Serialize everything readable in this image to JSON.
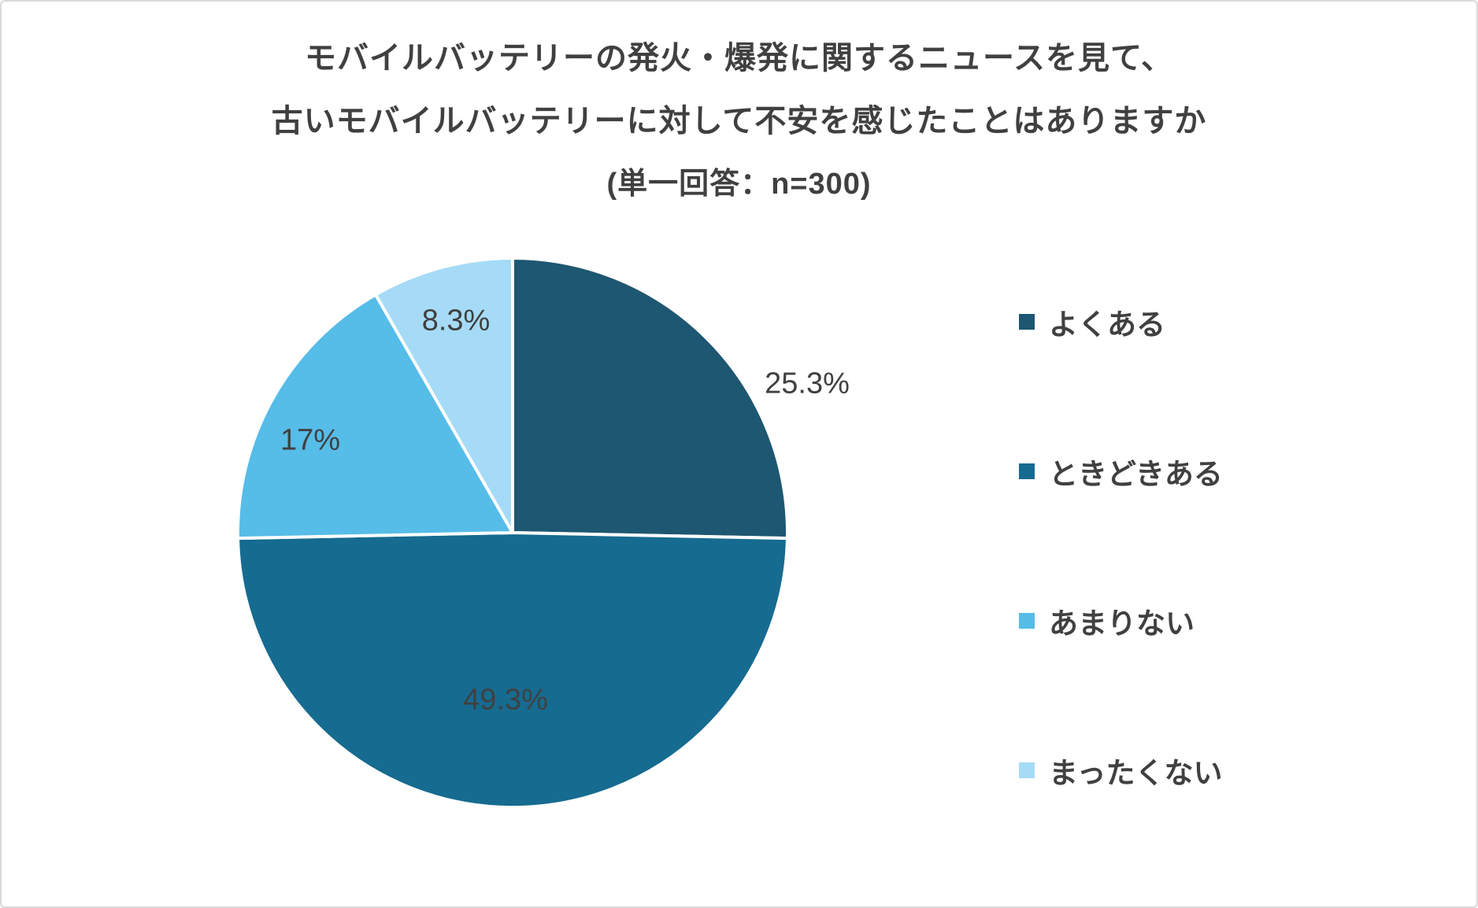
{
  "title": {
    "line1": "モバイルバッテリーの発火・爆発に関するニュースを見て、",
    "line2": "古いモバイルバッテリーに対して不安を感じたことはありますか",
    "line3": "(単一回答：n=300)"
  },
  "chart_data": {
    "type": "pie",
    "title": "モバイルバッテリーの発火・爆発に関するニュースを見て、古いモバイルバッテリーに対して不安を感じたことはありますか",
    "subtitle": "(単一回答：n=300)",
    "sample_size": 300,
    "direction": "clockwise",
    "start_angle_deg": 0,
    "legend_position": "right",
    "slices": [
      {
        "label": "よくある",
        "value": 25.3,
        "display": "25.3%",
        "color": "#1E5771"
      },
      {
        "label": "ときどきある",
        "value": 49.3,
        "display": "49.3%",
        "color": "#166B90"
      },
      {
        "label": "あまりない",
        "value": 17,
        "display": "17%",
        "color": "#56BCE8"
      },
      {
        "label": "まったくない",
        "value": 8.3,
        "display": "8.3%",
        "color": "#A5DBF6"
      }
    ],
    "text_color": "#404040"
  }
}
